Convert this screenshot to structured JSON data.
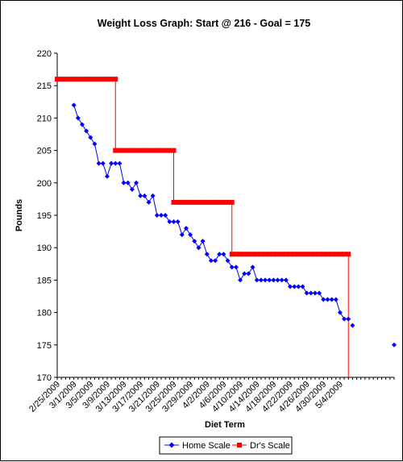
{
  "chart_data": {
    "type": "line",
    "title": "Weight Loss Graph: Start @ 216 - Goal = 175",
    "xlabel": "Diet Term",
    "ylabel": "Pounds",
    "ylim": [
      170,
      220
    ],
    "y_ticks": [
      170,
      175,
      180,
      185,
      190,
      195,
      200,
      205,
      210,
      215,
      220
    ],
    "x_start": "2009-02-25",
    "x_end": "2009-05-17",
    "x_tick_labels": [
      "2/25/2009",
      "3/1/2009",
      "3/5/2009",
      "3/9/2009",
      "3/13/2009",
      "3/17/2009",
      "3/21/2009",
      "3/25/2009",
      "3/29/2009",
      "4/2/2009",
      "4/6/2009",
      "4/10/2009",
      "4/14/2009",
      "4/18/2009",
      "4/22/2009",
      "4/26/2009",
      "4/30/2009",
      "5/4/2009"
    ],
    "grid": false,
    "legend_position": "bottom",
    "series": [
      {
        "name": "Home Scale",
        "color": "#0000ff",
        "marker": "diamond",
        "points": [
          {
            "x": "2009-03-01",
            "y": 212
          },
          {
            "x": "2009-03-02",
            "y": 210
          },
          {
            "x": "2009-03-03",
            "y": 209
          },
          {
            "x": "2009-03-04",
            "y": 208
          },
          {
            "x": "2009-03-05",
            "y": 207
          },
          {
            "x": "2009-03-06",
            "y": 206
          },
          {
            "x": "2009-03-07",
            "y": 203
          },
          {
            "x": "2009-03-08",
            "y": 203
          },
          {
            "x": "2009-03-09",
            "y": 201
          },
          {
            "x": "2009-03-10",
            "y": 203
          },
          {
            "x": "2009-03-11",
            "y": 203
          },
          {
            "x": "2009-03-12",
            "y": 203
          },
          {
            "x": "2009-03-13",
            "y": 200
          },
          {
            "x": "2009-03-14",
            "y": 200
          },
          {
            "x": "2009-03-15",
            "y": 199
          },
          {
            "x": "2009-03-16",
            "y": 200
          },
          {
            "x": "2009-03-17",
            "y": 198
          },
          {
            "x": "2009-03-18",
            "y": 198
          },
          {
            "x": "2009-03-19",
            "y": 197
          },
          {
            "x": "2009-03-20",
            "y": 198
          },
          {
            "x": "2009-03-21",
            "y": 195
          },
          {
            "x": "2009-03-22",
            "y": 195
          },
          {
            "x": "2009-03-23",
            "y": 195
          },
          {
            "x": "2009-03-24",
            "y": 194
          },
          {
            "x": "2009-03-25",
            "y": 194
          },
          {
            "x": "2009-03-26",
            "y": 194
          },
          {
            "x": "2009-03-27",
            "y": 192
          },
          {
            "x": "2009-03-28",
            "y": 193
          },
          {
            "x": "2009-03-29",
            "y": 192
          },
          {
            "x": "2009-03-30",
            "y": 191
          },
          {
            "x": "2009-03-31",
            "y": 190
          },
          {
            "x": "2009-04-01",
            "y": 191
          },
          {
            "x": "2009-04-02",
            "y": 189
          },
          {
            "x": "2009-04-03",
            "y": 188
          },
          {
            "x": "2009-04-04",
            "y": 188
          },
          {
            "x": "2009-04-05",
            "y": 189
          },
          {
            "x": "2009-04-06",
            "y": 189
          },
          {
            "x": "2009-04-07",
            "y": 188
          },
          {
            "x": "2009-04-08",
            "y": 187
          },
          {
            "x": "2009-04-09",
            "y": 187
          },
          {
            "x": "2009-04-10",
            "y": 185
          },
          {
            "x": "2009-04-11",
            "y": 186
          },
          {
            "x": "2009-04-12",
            "y": 186
          },
          {
            "x": "2009-04-13",
            "y": 187
          },
          {
            "x": "2009-04-14",
            "y": 185
          },
          {
            "x": "2009-04-15",
            "y": 185
          },
          {
            "x": "2009-04-16",
            "y": 185
          },
          {
            "x": "2009-04-17",
            "y": 185
          },
          {
            "x": "2009-04-18",
            "y": 185
          },
          {
            "x": "2009-04-19",
            "y": 185
          },
          {
            "x": "2009-04-20",
            "y": 185
          },
          {
            "x": "2009-04-21",
            "y": 185
          },
          {
            "x": "2009-04-22",
            "y": 184
          },
          {
            "x": "2009-04-23",
            "y": 184
          },
          {
            "x": "2009-04-24",
            "y": 184
          },
          {
            "x": "2009-04-25",
            "y": 184
          },
          {
            "x": "2009-04-26",
            "y": 183
          },
          {
            "x": "2009-04-27",
            "y": 183
          },
          {
            "x": "2009-04-28",
            "y": 183
          },
          {
            "x": "2009-04-29",
            "y": 183
          },
          {
            "x": "2009-04-30",
            "y": 182
          },
          {
            "x": "2009-05-01",
            "y": 182
          },
          {
            "x": "2009-05-02",
            "y": 182
          },
          {
            "x": "2009-05-03",
            "y": 182
          },
          {
            "x": "2009-05-04",
            "y": 180
          },
          {
            "x": "2009-05-05",
            "y": 179
          },
          {
            "x": "2009-05-06",
            "y": 179
          },
          {
            "x": "2009-05-07",
            "y": 178
          },
          {
            "x": "2009-05-17",
            "y": 175
          }
        ],
        "connect_until_index": 67
      },
      {
        "name": "Dr's Scale",
        "color": "#ff0000",
        "marker": "square",
        "segments": [
          {
            "from": "2009-02-25",
            "to": "2009-03-11",
            "y": 216
          },
          {
            "from": "2009-03-11",
            "to": "2009-03-25",
            "y": 205
          },
          {
            "from": "2009-03-25",
            "to": "2009-04-08",
            "y": 197
          },
          {
            "from": "2009-04-08",
            "to": "2009-05-06",
            "y": 189
          }
        ],
        "final_drop": {
          "x": "2009-05-06",
          "from": 189,
          "to": 170
        }
      }
    ]
  }
}
